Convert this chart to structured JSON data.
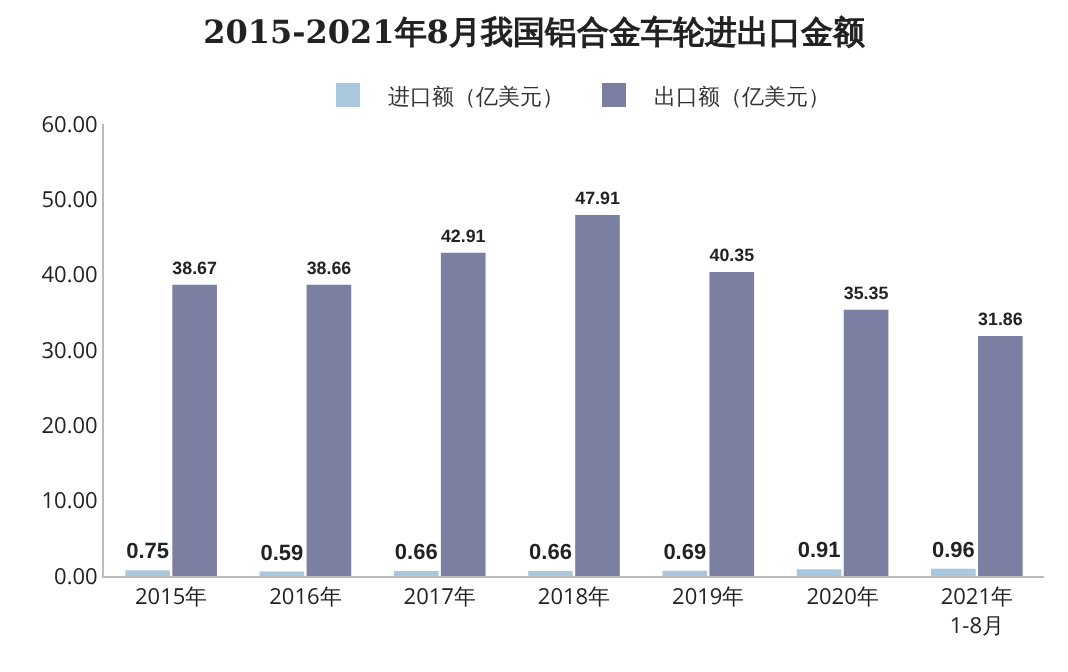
{
  "chart_data": {
    "type": "bar",
    "title": "2015-2021年8月我国铝合金车轮进出口金额",
    "categories": [
      "2015年",
      "2016年",
      "2017年",
      "2018年",
      "2019年",
      "2020年",
      "2021年\n1-8月"
    ],
    "series": [
      {
        "name": "进口额（亿美元）",
        "color": "#a9c8de",
        "values": [
          0.75,
          0.59,
          0.66,
          0.66,
          0.69,
          0.91,
          0.96
        ]
      },
      {
        "name": "出口额（亿美元）",
        "color": "#7b80a3",
        "values": [
          38.67,
          38.66,
          42.91,
          47.91,
          40.35,
          35.35,
          31.86
        ]
      }
    ],
    "ylim": [
      0,
      60
    ],
    "yticks": [
      {
        "value": 0,
        "label": "0.00"
      },
      {
        "value": 10,
        "label": "10.00"
      },
      {
        "value": 20,
        "label": "20.00"
      },
      {
        "value": 30,
        "label": "30.00"
      },
      {
        "value": 40,
        "label": "40.00"
      },
      {
        "value": 50,
        "label": "50.00"
      },
      {
        "value": 60,
        "label": "60.00"
      }
    ],
    "grid": false,
    "legend": "top",
    "data_labels": true
  }
}
